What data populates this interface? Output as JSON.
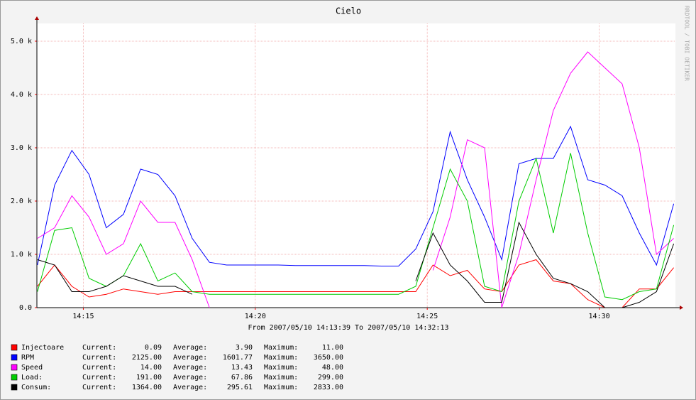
{
  "chart_data": {
    "type": "line",
    "title": "Cielo",
    "side_text": "RRDTOOL / TOBI OETIKER",
    "footer": "From 2007/05/10 14:13:39 To 2007/05/10 14:32:13",
    "xlim": [
      "14:13:39",
      "14:32:13"
    ],
    "xticks": [
      "14:15",
      "14:20",
      "14:25",
      "14:30"
    ],
    "ylim": [
      0,
      5333
    ],
    "yticks": [
      {
        "value": 0,
        "label": "0.0"
      },
      {
        "value": 1000,
        "label": "1.0 k"
      },
      {
        "value": 2000,
        "label": "2.0 k"
      },
      {
        "value": 3000,
        "label": "3.0 k"
      },
      {
        "value": 4000,
        "label": "4.0 k"
      },
      {
        "value": 5000,
        "label": "5.0 k"
      }
    ],
    "grid": true,
    "x": [
      "14:13:40",
      "14:14:10",
      "14:14:40",
      "14:15:10",
      "14:15:40",
      "14:16:10",
      "14:16:40",
      "14:17:10",
      "14:17:40",
      "14:18:10",
      "14:18:40",
      "14:19:10",
      "14:19:40",
      "14:20:10",
      "14:20:40",
      "14:21:10",
      "14:21:40",
      "14:22:10",
      "14:22:40",
      "14:23:10",
      "14:23:40",
      "14:24:10",
      "14:24:40",
      "14:25:10",
      "14:25:40",
      "14:26:10",
      "14:26:40",
      "14:27:10",
      "14:27:40",
      "14:28:10",
      "14:28:40",
      "14:29:10",
      "14:29:40",
      "14:30:10",
      "14:30:40",
      "14:31:10",
      "14:31:40",
      "14:32:10"
    ],
    "legend_stat_labels": [
      "Current:",
      "Average:",
      "Maximum:"
    ],
    "series": [
      {
        "name": "Injectoare",
        "color": "#ff0000",
        "stats": [
          "0.09",
          "3.90",
          "11.00"
        ],
        "values": [
          400,
          800,
          400,
          200,
          250,
          350,
          300,
          250,
          300,
          300,
          300,
          300,
          300,
          300,
          300,
          300,
          300,
          300,
          300,
          300,
          300,
          300,
          300,
          800,
          600,
          700,
          350,
          300,
          800,
          900,
          500,
          450,
          150,
          0,
          0,
          350,
          350,
          750
        ]
      },
      {
        "name": "RPM",
        "color": "#0000ff",
        "stats": [
          "2125.00",
          "1601.77",
          "3650.00"
        ],
        "values": [
          800,
          2300,
          2950,
          2500,
          1500,
          1750,
          2600,
          2500,
          2100,
          1300,
          850,
          800,
          800,
          800,
          800,
          790,
          790,
          790,
          790,
          790,
          780,
          780,
          1100,
          1800,
          3300,
          2400,
          1700,
          900,
          2700,
          2800,
          2800,
          3400,
          2400,
          2300,
          2100,
          1400,
          800,
          1950
        ]
      },
      {
        "name": "Speed",
        "color": "#ff00ff",
        "stats": [
          "14.00",
          "13.43",
          "48.00"
        ],
        "values": [
          1300,
          1500,
          2100,
          1700,
          1000,
          1200,
          2000,
          1600,
          1600,
          900,
          0,
          null,
          null,
          null,
          null,
          null,
          null,
          null,
          null,
          null,
          null,
          null,
          null,
          700,
          1700,
          3150,
          3000,
          0,
          1000,
          2400,
          3700,
          4400,
          4800,
          4500,
          4200,
          3000,
          1000,
          1300
        ]
      },
      {
        "name": "Load:",
        "color": "#00cc00",
        "stats": [
          "191.00",
          "67.86",
          "299.00"
        ],
        "values": [
          300,
          1450,
          1500,
          550,
          400,
          600,
          1200,
          500,
          650,
          300,
          250,
          250,
          250,
          250,
          250,
          250,
          250,
          250,
          250,
          250,
          250,
          250,
          400,
          1500,
          2600,
          2000,
          400,
          300,
          2000,
          2800,
          1400,
          2900,
          1400,
          200,
          150,
          300,
          350,
          1550
        ]
      },
      {
        "name": "Consum:",
        "color": "#000000",
        "stats": [
          "1364.00",
          "295.61",
          "2833.00"
        ],
        "values": [
          900,
          800,
          300,
          300,
          400,
          600,
          500,
          400,
          400,
          250,
          null,
          null,
          null,
          null,
          null,
          null,
          null,
          null,
          null,
          null,
          null,
          null,
          500,
          1400,
          800,
          500,
          100,
          100,
          1600,
          1000,
          550,
          450,
          300,
          0,
          0,
          100,
          300,
          1200
        ]
      }
    ]
  }
}
